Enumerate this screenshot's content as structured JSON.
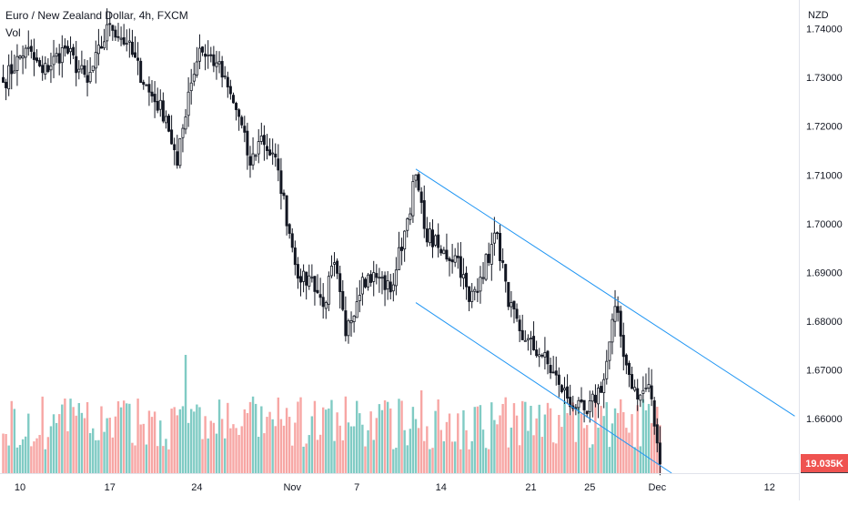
{
  "legend": {
    "symbol": "Euro / New Zealand Dollar, 4h, FXCM",
    "volume_label": "Vol"
  },
  "price_axis": {
    "currency": "NZD",
    "ticks": [
      "1.74000",
      "1.73000",
      "1.72000",
      "1.71000",
      "1.70000",
      "1.69000",
      "1.68000",
      "1.67000",
      "1.66000"
    ],
    "tick_values": [
      1.74,
      1.73,
      1.72,
      1.71,
      1.7,
      1.69,
      1.68,
      1.67,
      1.66
    ],
    "last_price": "1.65070",
    "last_price_value": 1.6507,
    "volume_tag": "19.035K"
  },
  "time_axis": {
    "labels": [
      "10",
      "17",
      "24",
      "Nov",
      "7",
      "14",
      "21",
      "25",
      "Dec",
      "12"
    ],
    "bar_index": [
      6,
      38,
      69,
      103,
      126,
      156,
      188,
      209,
      233,
      273
    ]
  },
  "colors": {
    "up": "#26a69a",
    "down": "#ef5350",
    "candle": "#131722",
    "channel": "#2196f3",
    "last_price_bg": "#131722",
    "volume_tag_bg": "#ef5350",
    "vol_up": "#80cbc4",
    "vol_down": "#f7a6a4"
  },
  "chart_data": {
    "type": "candlestick",
    "interval": "4h",
    "y_range": [
      1.6432,
      1.7459
    ],
    "anchors": [
      [
        0,
        1.729
      ],
      [
        8,
        1.736
      ],
      [
        14,
        1.731
      ],
      [
        22,
        1.736
      ],
      [
        30,
        1.729
      ],
      [
        38,
        1.741
      ],
      [
        44,
        1.737
      ],
      [
        52,
        1.727
      ],
      [
        58,
        1.722
      ],
      [
        62,
        1.712
      ],
      [
        66,
        1.727
      ],
      [
        70,
        1.736
      ],
      [
        76,
        1.733
      ],
      [
        84,
        1.722
      ],
      [
        88,
        1.712
      ],
      [
        92,
        1.718
      ],
      [
        98,
        1.711
      ],
      [
        102,
        1.698
      ],
      [
        106,
        1.688
      ],
      [
        110,
        1.689
      ],
      [
        114,
        1.683
      ],
      [
        118,
        1.692
      ],
      [
        122,
        1.677
      ],
      [
        128,
        1.689
      ],
      [
        134,
        1.689
      ],
      [
        138,
        1.686
      ],
      [
        144,
        1.701
      ],
      [
        147,
        1.71
      ],
      [
        150,
        1.699
      ],
      [
        156,
        1.694
      ],
      [
        162,
        1.693
      ],
      [
        166,
        1.684
      ],
      [
        170,
        1.689
      ],
      [
        176,
        1.698
      ],
      [
        180,
        1.683
      ],
      [
        186,
        1.676
      ],
      [
        192,
        1.673
      ],
      [
        198,
        1.667
      ],
      [
        204,
        1.662
      ],
      [
        208,
        1.661
      ],
      [
        214,
        1.668
      ],
      [
        218,
        1.683
      ],
      [
        222,
        1.671
      ],
      [
        226,
        1.664
      ],
      [
        230,
        1.667
      ],
      [
        233,
        1.655
      ],
      [
        234,
        1.6507
      ]
    ],
    "channel": {
      "upper": [
        [
          147,
          1.7112
        ],
        [
          218,
          1.6848
        ],
        [
          282,
          1.6605
        ]
      ],
      "lower": [
        [
          147,
          1.6838
        ],
        [
          233,
          1.6508
        ],
        [
          272,
          1.6358
        ]
      ]
    },
    "volume_scale_max": 19.035
  }
}
